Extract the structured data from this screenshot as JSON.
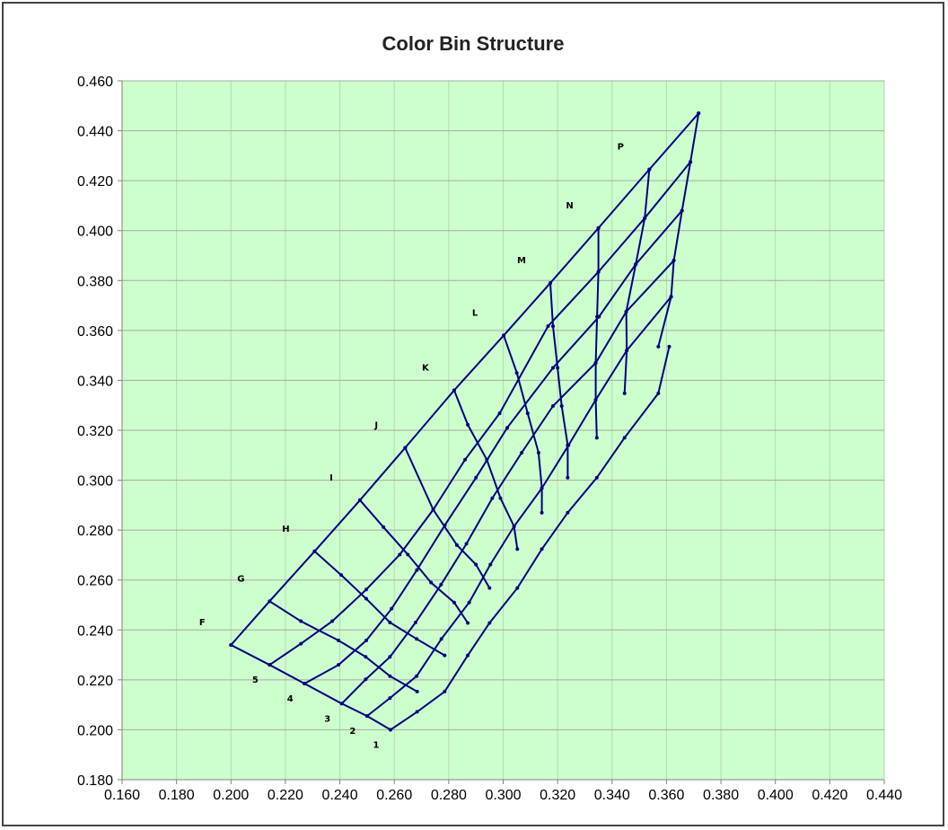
{
  "chart_data": {
    "type": "line",
    "title": "Color Bin Structure",
    "xlabel": "",
    "ylabel": "",
    "xlim": [
      0.16,
      0.44
    ],
    "ylim": [
      0.18,
      0.46
    ],
    "x_ticks": [
      "0.160",
      "0.180",
      "0.200",
      "0.220",
      "0.240",
      "0.260",
      "0.280",
      "0.300",
      "0.320",
      "0.340",
      "0.360",
      "0.380",
      "0.400",
      "0.420",
      "0.440"
    ],
    "y_ticks": [
      "0.460",
      "0.440",
      "0.420",
      "0.400",
      "0.380",
      "0.360",
      "0.340",
      "0.320",
      "0.300",
      "0.280",
      "0.260",
      "0.240",
      "0.220",
      "0.200",
      "0.180"
    ],
    "grid": true,
    "plot_background": "#ccffcc",
    "line_color": "#000080",
    "rows": [
      {
        "label": "1",
        "points": [
          [
            0.2586,
            0.2
          ],
          [
            0.2684,
            0.2072
          ],
          [
            0.2785,
            0.2153
          ],
          [
            0.287,
            0.2298
          ],
          [
            0.295,
            0.2428
          ],
          [
            0.3052,
            0.2568
          ],
          [
            0.3142,
            0.2724
          ],
          [
            0.3237,
            0.287
          ],
          [
            0.3344,
            0.301
          ],
          [
            0.3446,
            0.317
          ],
          [
            0.357,
            0.3348
          ],
          [
            0.361,
            0.3535
          ]
        ]
      },
      {
        "label": "2",
        "points": [
          [
            0.25,
            0.2055
          ],
          [
            0.2584,
            0.2127
          ],
          [
            0.2682,
            0.2215
          ],
          [
            0.2773,
            0.2364
          ],
          [
            0.2875,
            0.251
          ],
          [
            0.2953,
            0.2662
          ],
          [
            0.304,
            0.2815
          ],
          [
            0.3142,
            0.2968
          ],
          [
            0.324,
            0.314
          ],
          [
            0.334,
            0.3322
          ],
          [
            0.3454,
            0.352
          ],
          [
            0.3617,
            0.3735
          ]
        ]
      },
      {
        "label": "3",
        "points": [
          [
            0.2407,
            0.2105
          ],
          [
            0.2495,
            0.2202
          ],
          [
            0.2584,
            0.2292
          ],
          [
            0.2678,
            0.243
          ],
          [
            0.2772,
            0.2582
          ],
          [
            0.2865,
            0.2745
          ],
          [
            0.296,
            0.2928
          ],
          [
            0.3068,
            0.311
          ],
          [
            0.3183,
            0.3297
          ],
          [
            0.334,
            0.347
          ],
          [
            0.3452,
            0.3675
          ],
          [
            0.3627,
            0.388
          ]
        ]
      },
      {
        "label": "4",
        "points": [
          [
            0.227,
            0.2185
          ],
          [
            0.2395,
            0.226
          ],
          [
            0.2497,
            0.2358
          ],
          [
            0.259,
            0.2485
          ],
          [
            0.2683,
            0.264
          ],
          [
            0.2786,
            0.282
          ],
          [
            0.29,
            0.301
          ],
          [
            0.3015,
            0.321
          ],
          [
            0.3183,
            0.345
          ],
          [
            0.3352,
            0.3655
          ],
          [
            0.3487,
            0.3865
          ],
          [
            0.3657,
            0.408
          ]
        ]
      },
      {
        "label": "5",
        "points": [
          [
            0.2142,
            0.226
          ],
          [
            0.2257,
            0.2345
          ],
          [
            0.2372,
            0.2435
          ],
          [
            0.2497,
            0.2562
          ],
          [
            0.262,
            0.2702
          ],
          [
            0.2743,
            0.2882
          ],
          [
            0.286,
            0.3082
          ],
          [
            0.2987,
            0.3268
          ],
          [
            0.3165,
            0.3617
          ],
          [
            0.335,
            0.3835
          ],
          [
            0.352,
            0.405
          ],
          [
            0.3688,
            0.4275
          ]
        ]
      },
      {
        "label": "",
        "points": [
          [
            0.2,
            0.234
          ],
          [
            0.2142,
            0.2515
          ],
          [
            0.2307,
            0.2715
          ],
          [
            0.2474,
            0.292
          ],
          [
            0.264,
            0.313
          ],
          [
            0.282,
            0.336
          ],
          [
            0.3002,
            0.358
          ],
          [
            0.3173,
            0.379
          ],
          [
            0.335,
            0.401
          ],
          [
            0.3537,
            0.4245
          ],
          [
            0.3718,
            0.447
          ]
        ]
      }
    ],
    "columns": [
      {
        "label": "F",
        "points": [
          [
            0.2,
            0.234
          ],
          [
            0.2142,
            0.226
          ],
          [
            0.227,
            0.2185
          ],
          [
            0.2407,
            0.2105
          ],
          [
            0.25,
            0.2055
          ],
          [
            0.2586,
            0.2
          ]
        ]
      },
      {
        "label": "G",
        "points": [
          [
            0.2142,
            0.2515
          ],
          [
            0.2257,
            0.2435
          ],
          [
            0.2395,
            0.2358
          ],
          [
            0.2495,
            0.2292
          ],
          [
            0.2584,
            0.2215
          ],
          [
            0.2684,
            0.2153
          ]
        ]
      },
      {
        "label": "H",
        "points": [
          [
            0.2307,
            0.2715
          ],
          [
            0.2405,
            0.262
          ],
          [
            0.2497,
            0.2525
          ],
          [
            0.2584,
            0.243
          ],
          [
            0.2682,
            0.2364
          ],
          [
            0.2785,
            0.2298
          ]
        ]
      },
      {
        "label": "I",
        "points": [
          [
            0.2474,
            0.292
          ],
          [
            0.256,
            0.2812
          ],
          [
            0.265,
            0.2702
          ],
          [
            0.2735,
            0.259
          ],
          [
            0.282,
            0.251
          ],
          [
            0.287,
            0.2428
          ]
        ]
      },
      {
        "label": "J",
        "points": [
          [
            0.264,
            0.313
          ],
          [
            0.2743,
            0.2882
          ],
          [
            0.283,
            0.274
          ],
          [
            0.29,
            0.2662
          ],
          [
            0.295,
            0.2568
          ]
        ]
      },
      {
        "label": "K",
        "points": [
          [
            0.282,
            0.336
          ],
          [
            0.287,
            0.3222
          ],
          [
            0.294,
            0.3082
          ],
          [
            0.299,
            0.2928
          ],
          [
            0.304,
            0.2815
          ],
          [
            0.3052,
            0.2724
          ]
        ]
      },
      {
        "label": "L",
        "points": [
          [
            0.3002,
            0.358
          ],
          [
            0.305,
            0.343
          ],
          [
            0.309,
            0.3268
          ],
          [
            0.313,
            0.311
          ],
          [
            0.3142,
            0.2968
          ],
          [
            0.3142,
            0.287
          ]
        ]
      },
      {
        "label": "M",
        "points": [
          [
            0.3173,
            0.379
          ],
          [
            0.3183,
            0.3617
          ],
          [
            0.32,
            0.345
          ],
          [
            0.3215,
            0.3297
          ],
          [
            0.3237,
            0.314
          ],
          [
            0.3237,
            0.301
          ]
        ]
      },
      {
        "label": "N",
        "points": [
          [
            0.335,
            0.401
          ],
          [
            0.335,
            0.3835
          ],
          [
            0.3345,
            0.3655
          ],
          [
            0.334,
            0.347
          ],
          [
            0.334,
            0.3322
          ],
          [
            0.3344,
            0.317
          ]
        ]
      },
      {
        "label": "P",
        "points": [
          [
            0.3537,
            0.4245
          ],
          [
            0.352,
            0.405
          ],
          [
            0.3487,
            0.3865
          ],
          [
            0.3452,
            0.3675
          ],
          [
            0.3454,
            0.352
          ],
          [
            0.3446,
            0.3348
          ]
        ]
      },
      {
        "label": "",
        "points": [
          [
            0.3718,
            0.447
          ],
          [
            0.3688,
            0.4275
          ],
          [
            0.3657,
            0.408
          ],
          [
            0.3627,
            0.388
          ],
          [
            0.3617,
            0.3735
          ],
          [
            0.357,
            0.3535
          ]
        ]
      }
    ]
  }
}
